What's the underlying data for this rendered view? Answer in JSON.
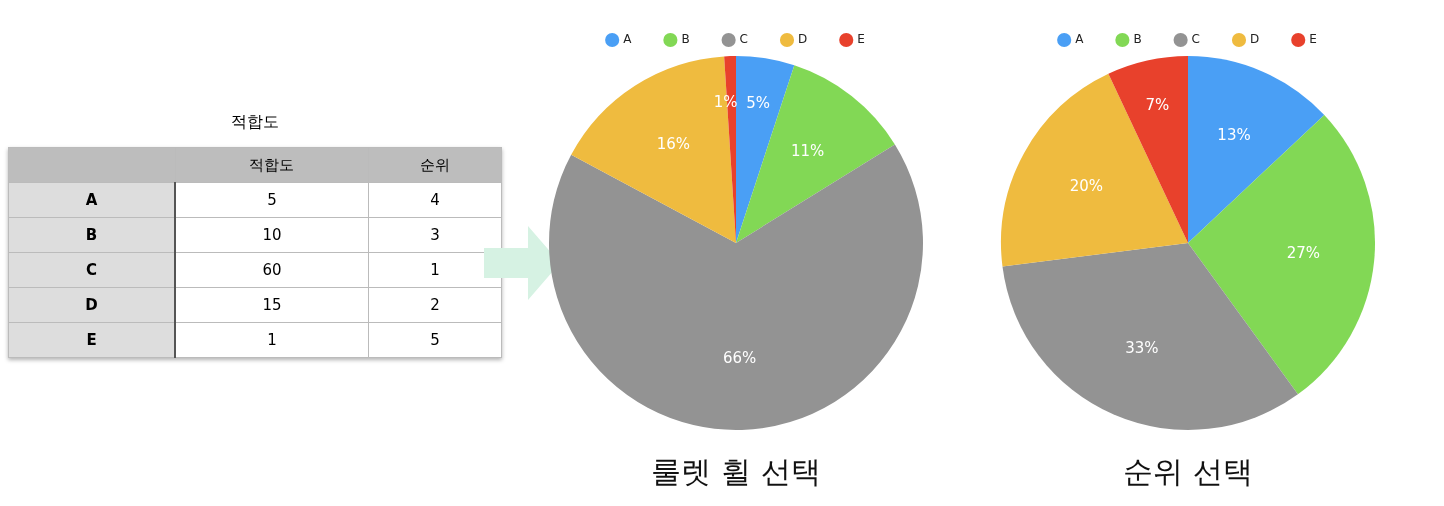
{
  "chart_data": [
    {
      "type": "other",
      "title": "적합도",
      "categories": [
        "A",
        "B",
        "C",
        "D",
        "E"
      ],
      "series": [
        {
          "name": "적합도",
          "values": [
            5,
            10,
            60,
            15,
            1
          ]
        },
        {
          "name": "순위",
          "values": [
            4,
            3,
            1,
            2,
            5
          ]
        }
      ],
      "data_labels": true
    },
    {
      "type": "pie",
      "title": "룰렛 휠 선택",
      "categories": [
        "A",
        "B",
        "C",
        "D",
        "E"
      ],
      "values": [
        5,
        11,
        66,
        16,
        1
      ],
      "value_labels": [
        "5%",
        "11%",
        "66%",
        "16%",
        "1%"
      ],
      "colors": [
        "#4a9ff5",
        "#82d855",
        "#939393",
        "#efbb3f",
        "#e8412c"
      ],
      "legend": "top"
    },
    {
      "type": "pie",
      "title": "순위 선택",
      "categories": [
        "A",
        "B",
        "C",
        "D",
        "E"
      ],
      "values": [
        13,
        27,
        33,
        20,
        7
      ],
      "value_labels": [
        "13%",
        "27%",
        "33%",
        "20%",
        "7%"
      ],
      "colors": [
        "#4a9ff5",
        "#82d855",
        "#939393",
        "#efbb3f",
        "#e8412c"
      ],
      "legend": "top"
    }
  ]
}
